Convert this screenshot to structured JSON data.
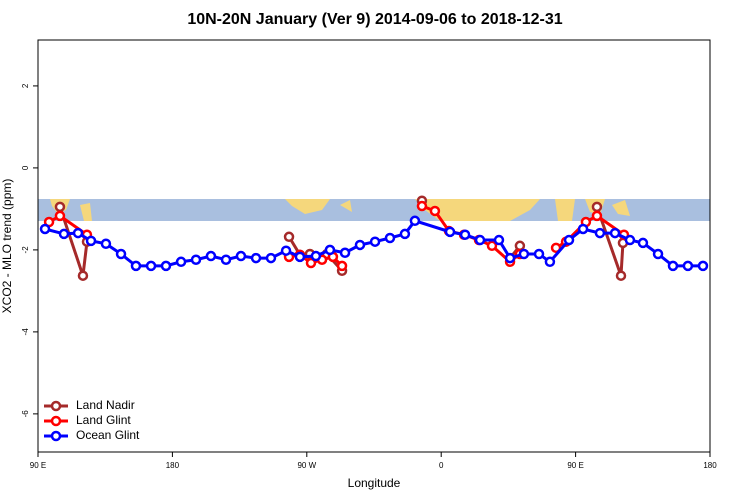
{
  "chart_data": {
    "type": "line",
    "title": "10N-20N January (Ver 9)   2014-09-06 to 2018-12-31",
    "x_label": "Longitude",
    "y_label": "XCO2 - MLO trend (ppm)",
    "xlim": [
      90,
      540
    ],
    "xticks": [
      {
        "value": 90,
        "label": "90 E"
      },
      {
        "value": 180,
        "label": "180"
      },
      {
        "value": 270,
        "label": "90 W"
      },
      {
        "value": 360,
        "label": "0"
      },
      {
        "value": 450,
        "label": "90 E"
      },
      {
        "value": 540,
        "label": "180"
      }
    ],
    "ylim": [
      -6.93,
      3.12
    ],
    "yticks": [
      2,
      0,
      -2,
      -4,
      -6
    ],
    "legend": "bottom-left",
    "series": [
      {
        "name": "Land Nadir",
        "color": "#a52a2a",
        "x": [
          104.7,
          120.1,
          122.8,
          null,
          258.1,
          265.4,
          272.1,
          283.5,
          293.6,
          null,
          347.1,
          null,
          406.1,
          412.7,
          null,
          464.3,
          480.4,
          481.7
        ],
        "values": [
          -0.95,
          -2.63,
          -1.8,
          null,
          -1.68,
          -2.12,
          -2.1,
          -2.1,
          -2.51,
          null,
          -0.8,
          null,
          -2.2,
          -1.9,
          null,
          -0.95,
          -2.63,
          -1.83
        ]
      },
      {
        "name": "Land Glint",
        "color": "#ff0000",
        "x": [
          97.4,
          104.7,
          122.8,
          null,
          258.1,
          265.4,
          272.8,
          280.2,
          287.5,
          293.6,
          null,
          347.1,
          355.8,
          365.2,
          375.3,
          385.3,
          394.0,
          406.1,
          412.7,
          null,
          436.9,
          443.6,
          456.9,
          464.3,
          482.4
        ],
        "values": [
          -1.32,
          -1.17,
          -1.63,
          null,
          -2.17,
          -2.12,
          -2.32,
          -2.24,
          -2.17,
          -2.39,
          null,
          -0.93,
          -1.05,
          -1.54,
          -1.63,
          -1.76,
          -1.9,
          -2.29,
          -2.1,
          null,
          -1.95,
          -1.8,
          -1.32,
          -1.17,
          -1.63
        ]
      },
      {
        "name": "Ocean Glint",
        "color": "#0000ff",
        "x": [
          94.7,
          107.4,
          116.8,
          125.5,
          135.5,
          145.6,
          155.6,
          165.7,
          175.7,
          185.8,
          195.8,
          205.8,
          215.9,
          225.9,
          236.0,
          246.0,
          256.1,
          265.4,
          276.1,
          285.5,
          295.6,
          305.6,
          315.7,
          325.7,
          335.7,
          342.4,
          365.9,
          376.0,
          386.0,
          398.7,
          406.1,
          415.4,
          425.5,
          432.8,
          445.6,
          455.0,
          466.3,
          476.4,
          486.4,
          495.1,
          505.2,
          515.2,
          525.2,
          535.3
        ],
        "values": [
          -1.49,
          -1.61,
          -1.59,
          -1.78,
          -1.85,
          -2.1,
          -2.39,
          -2.39,
          -2.39,
          -2.29,
          -2.24,
          -2.15,
          -2.24,
          -2.15,
          -2.2,
          -2.2,
          -2.02,
          -2.17,
          -2.15,
          -2.0,
          -2.07,
          -1.88,
          -1.8,
          -1.71,
          -1.61,
          -1.29,
          -1.56,
          -1.63,
          -1.76,
          -1.76,
          -2.2,
          -2.1,
          -2.1,
          -2.29,
          -1.76,
          -1.49,
          -1.59,
          -1.59,
          -1.76,
          -1.83,
          -2.1,
          -2.39,
          -2.39,
          -2.39
        ]
      }
    ]
  }
}
